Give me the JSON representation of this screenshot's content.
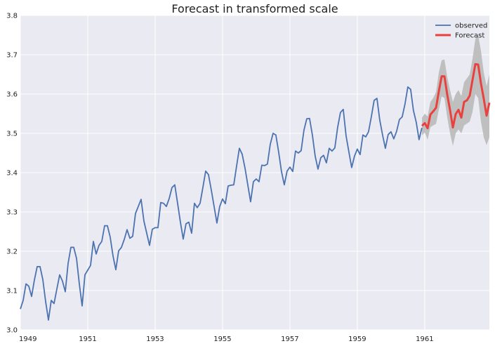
{
  "chart_data": {
    "type": "line",
    "title": "Forecast in transformed scale",
    "xlabel": "",
    "ylabel": "",
    "xlim": [
      1949.0,
      1962.92
    ],
    "ylim": [
      3.0,
      3.8
    ],
    "grid": true,
    "legend_position": "top-right",
    "x_ticks": [
      1949,
      1951,
      1953,
      1955,
      1957,
      1959,
      1961
    ],
    "y_ticks": [
      3.0,
      3.1,
      3.2,
      3.3,
      3.4,
      3.5,
      3.6,
      3.7,
      3.8
    ],
    "colors": {
      "observed": "#4c72b0",
      "forecast": "#e8413e",
      "band": "#bdbdbd",
      "background": "#eaeaf2",
      "grid": "#ffffff"
    },
    "series": [
      {
        "name": "observed",
        "x_start": 1949.0,
        "x_step": 0.08333,
        "values": [
          3.053,
          3.075,
          3.117,
          3.111,
          3.085,
          3.127,
          3.161,
          3.161,
          3.128,
          3.072,
          3.025,
          3.075,
          3.067,
          3.104,
          3.14,
          3.124,
          3.097,
          3.169,
          3.21,
          3.21,
          3.182,
          3.117,
          3.061,
          3.14,
          3.152,
          3.164,
          3.225,
          3.193,
          3.215,
          3.225,
          3.265,
          3.265,
          3.236,
          3.188,
          3.153,
          3.201,
          3.21,
          3.23,
          3.255,
          3.233,
          3.238,
          3.296,
          3.314,
          3.332,
          3.277,
          3.246,
          3.215,
          3.256,
          3.26,
          3.26,
          3.324,
          3.322,
          3.314,
          3.334,
          3.362,
          3.369,
          3.322,
          3.274,
          3.231,
          3.27,
          3.274,
          3.246,
          3.322,
          3.311,
          3.322,
          3.362,
          3.404,
          3.395,
          3.356,
          3.314,
          3.272,
          3.314,
          3.333,
          3.321,
          3.366,
          3.368,
          3.369,
          3.416,
          3.462,
          3.447,
          3.412,
          3.369,
          3.326,
          3.377,
          3.384,
          3.377,
          3.419,
          3.418,
          3.422,
          3.472,
          3.5,
          3.496,
          3.452,
          3.403,
          3.369,
          3.404,
          3.414,
          3.403,
          3.455,
          3.45,
          3.456,
          3.508,
          3.537,
          3.538,
          3.496,
          3.442,
          3.409,
          3.438,
          3.444,
          3.425,
          3.462,
          3.455,
          3.463,
          3.515,
          3.553,
          3.561,
          3.494,
          3.453,
          3.413,
          3.442,
          3.46,
          3.446,
          3.496,
          3.491,
          3.504,
          3.542,
          3.584,
          3.589,
          3.534,
          3.496,
          3.462,
          3.497,
          3.504,
          3.486,
          3.505,
          3.535,
          3.542,
          3.575,
          3.618,
          3.612,
          3.558,
          3.528,
          3.484,
          3.514
        ]
      },
      {
        "name": "Forecast",
        "x_start": 1960.92,
        "x_step": 0.08333,
        "values": [
          3.519,
          3.526,
          3.513,
          3.548,
          3.556,
          3.565,
          3.607,
          3.645,
          3.645,
          3.598,
          3.559,
          3.515,
          3.549,
          3.56,
          3.54,
          3.58,
          3.584,
          3.596,
          3.636,
          3.676,
          3.675,
          3.627,
          3.588,
          3.545,
          3.578
        ],
        "lower": [
          3.495,
          3.502,
          3.484,
          3.516,
          3.52,
          3.524,
          3.56,
          3.594,
          3.59,
          3.54,
          3.5,
          3.468,
          3.5,
          3.51,
          3.5,
          3.52,
          3.525,
          3.53,
          3.555,
          3.6,
          3.59,
          3.53,
          3.49,
          3.47,
          3.49
        ],
        "upper": [
          3.54,
          3.55,
          3.543,
          3.58,
          3.59,
          3.605,
          3.655,
          3.686,
          3.688,
          3.643,
          3.61,
          3.58,
          3.6,
          3.61,
          3.595,
          3.63,
          3.64,
          3.65,
          3.69,
          3.74,
          3.75,
          3.71,
          3.655,
          3.62,
          3.65
        ]
      }
    ]
  }
}
